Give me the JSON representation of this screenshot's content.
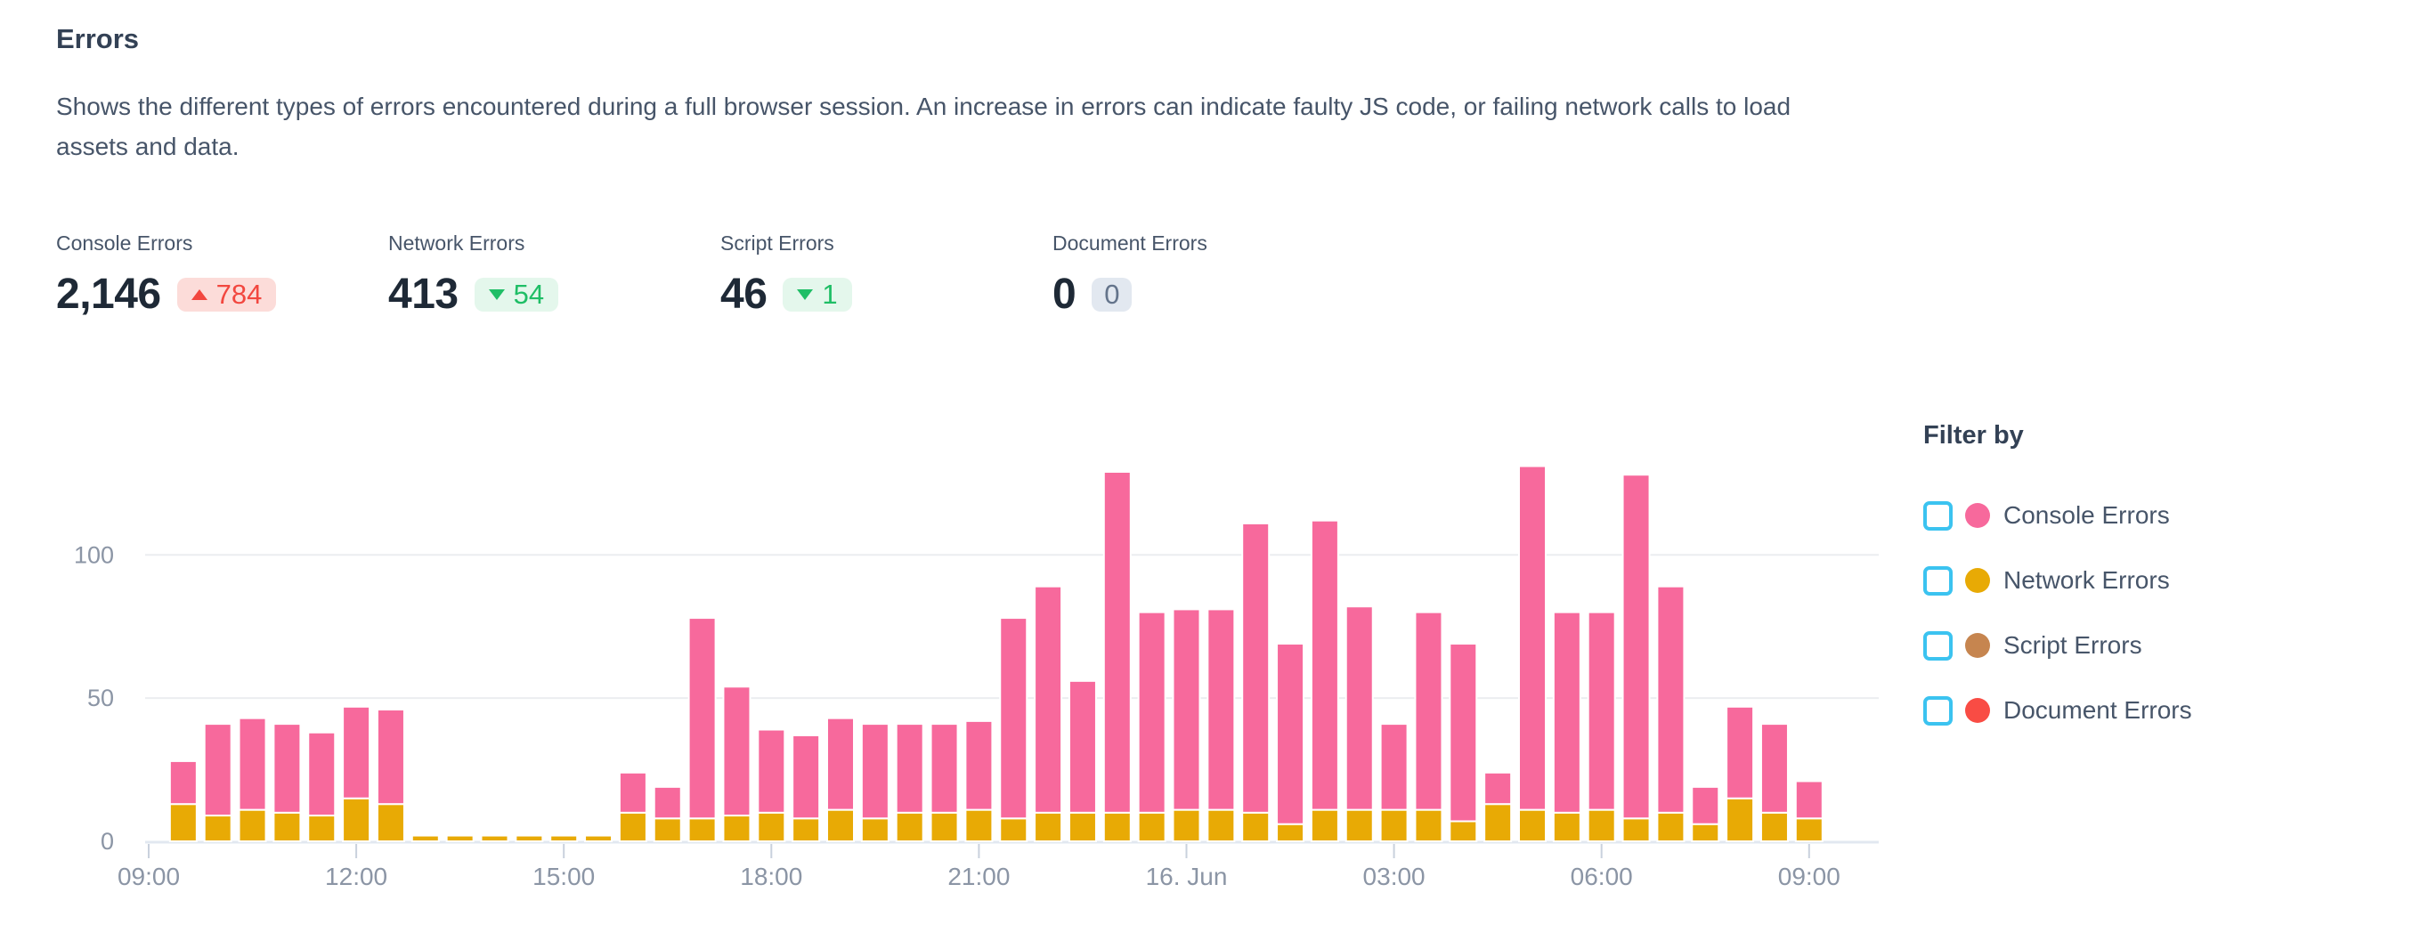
{
  "header": {
    "title": "Errors",
    "description": "Shows the different types of errors encountered during a full browser session. An increase in errors can indicate faulty JS code, or failing network calls to load assets and data."
  },
  "metrics": [
    {
      "label": "Console Errors",
      "value": "2,146",
      "delta": "784",
      "direction": "up",
      "tone": "bad"
    },
    {
      "label": "Network Errors",
      "value": "413",
      "delta": "54",
      "direction": "down",
      "tone": "good"
    },
    {
      "label": "Script Errors",
      "value": "46",
      "delta": "1",
      "direction": "down",
      "tone": "good"
    },
    {
      "label": "Document Errors",
      "value": "0",
      "delta": "0",
      "direction": "none",
      "tone": "neutral"
    }
  ],
  "legend": {
    "title": "Filter by",
    "items": [
      {
        "label": "Console Errors",
        "color": "#F7699C",
        "checked": false
      },
      {
        "label": "Network Errors",
        "color": "#E8AA05",
        "checked": false
      },
      {
        "label": "Script Errors",
        "color": "#C6854F",
        "checked": false
      },
      {
        "label": "Document Errors",
        "color": "#F94C44",
        "checked": false
      }
    ]
  },
  "colors": {
    "console_bar": "#F7699C",
    "network_bar": "#E8AA05",
    "axis_line": "#E2E8F0",
    "tick_mark": "#C9D1DD",
    "gridline": "#EBEDF0",
    "axis_text": "#8B95A5",
    "checkbox_border": "#3BC3F0"
  },
  "chart_data": {
    "type": "bar",
    "stacked": true,
    "grid": "horizontal",
    "legend_position": "right",
    "x_tick_labels": [
      "09:00",
      "12:00",
      "15:00",
      "18:00",
      "21:00",
      "16. Jun",
      "03:00",
      "06:00",
      "09:00"
    ],
    "y_ticks": [
      0,
      50,
      100
    ],
    "ylim": [
      0,
      140
    ],
    "categories": [
      "09:30",
      "10:00",
      "10:30",
      "11:00",
      "11:30",
      "12:00",
      "12:30",
      "13:00",
      "13:30",
      "14:00",
      "14:30",
      "15:00",
      "15:30",
      "16:00",
      "16:30",
      "17:00",
      "17:30",
      "18:00",
      "18:30",
      "19:00",
      "19:30",
      "20:00",
      "20:30",
      "21:00",
      "21:30",
      "22:00",
      "22:30",
      "23:00",
      "23:30",
      "00:00",
      "00:30",
      "01:00",
      "01:30",
      "02:00",
      "02:30",
      "03:00",
      "03:30",
      "04:00",
      "04:30",
      "05:00",
      "05:30",
      "06:00",
      "06:30",
      "07:00",
      "07:30",
      "08:00",
      "08:30",
      "09:00"
    ],
    "series": [
      {
        "name": "Console Errors",
        "color": "#F7699C",
        "values": [
          15,
          32,
          32,
          31,
          29,
          32,
          33,
          0,
          0,
          0,
          0,
          0,
          0,
          14,
          11,
          70,
          45,
          29,
          29,
          32,
          33,
          31,
          31,
          31,
          70,
          79,
          46,
          119,
          70,
          70,
          70,
          101,
          63,
          101,
          71,
          30,
          69,
          62,
          11,
          120,
          70,
          69,
          120,
          79,
          13,
          32,
          31,
          13
        ]
      },
      {
        "name": "Network Errors",
        "color": "#E8AA05",
        "values": [
          13,
          9,
          11,
          10,
          9,
          15,
          13,
          2,
          2,
          2,
          2,
          2,
          2,
          10,
          8,
          8,
          9,
          10,
          8,
          11,
          8,
          10,
          10,
          11,
          8,
          10,
          10,
          10,
          10,
          11,
          11,
          10,
          6,
          11,
          11,
          11,
          11,
          7,
          13,
          11,
          10,
          11,
          8,
          10,
          6,
          15,
          10,
          8
        ]
      }
    ],
    "stack_bottom_to_top": [
      "Network Errors",
      "Console Errors"
    ]
  }
}
